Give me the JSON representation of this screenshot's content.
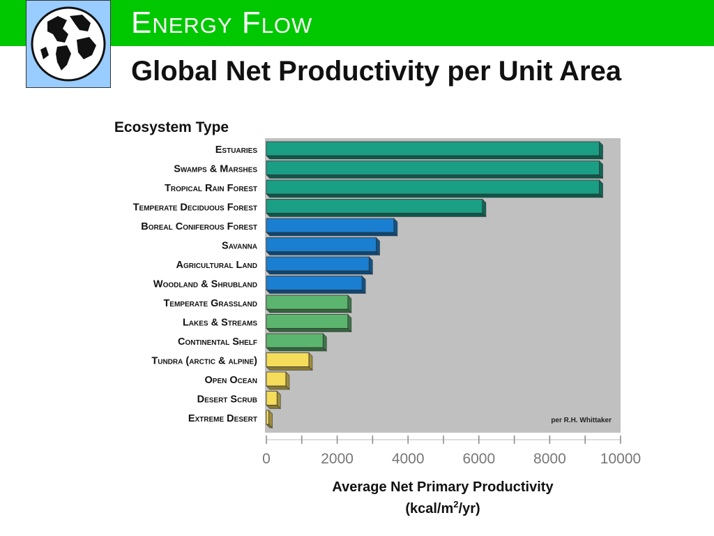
{
  "slide": {
    "title": "Energy Flow",
    "subtitle": "Global Net Productivity per Unit Area"
  },
  "logo": {
    "icon": "globe-icon"
  },
  "colors": {
    "header_bar": "#00c800",
    "teal": "#1a9e84",
    "blue": "#1a7fd0",
    "green": "#5cb56e",
    "yellow": "#f5dc5a",
    "plot_bg": "#c0c0c0"
  },
  "chart_data": {
    "type": "bar",
    "orientation": "horizontal",
    "category_axis_title": "Ecosystem Type",
    "categories": [
      "Estuaries",
      "Swamps & Marshes",
      "Tropical Rain Forest",
      "Temperate Deciduous Forest",
      "Boreal Coniferous Forest",
      "Savanna",
      "Agricultural Land",
      "Woodland & Shrubland",
      "Temperate Grassland",
      "Lakes & Streams",
      "Continental Shelf",
      "Tundra (arctic & alpine)",
      "Open Ocean",
      "Desert Scrub",
      "Extreme Desert"
    ],
    "values": [
      9400,
      9400,
      9400,
      6100,
      3600,
      3100,
      2900,
      2700,
      2300,
      2300,
      1600,
      1200,
      550,
      300,
      70
    ],
    "bar_colors": [
      "teal",
      "teal",
      "teal",
      "teal",
      "blue",
      "blue",
      "blue",
      "blue",
      "green",
      "green",
      "green",
      "yellow",
      "yellow",
      "yellow",
      "yellow"
    ],
    "xlabel_line1": "Average Net Primary Productivity",
    "xlabel_line2_pre": "(kcal/m",
    "xlabel_line2_sup": "2",
    "xlabel_line2_post": "/yr)",
    "xlim": [
      0,
      10000
    ],
    "xticks": [
      0,
      2000,
      4000,
      6000,
      8000,
      10000
    ],
    "annotation": "per R.H. Whittaker",
    "grid": false
  }
}
